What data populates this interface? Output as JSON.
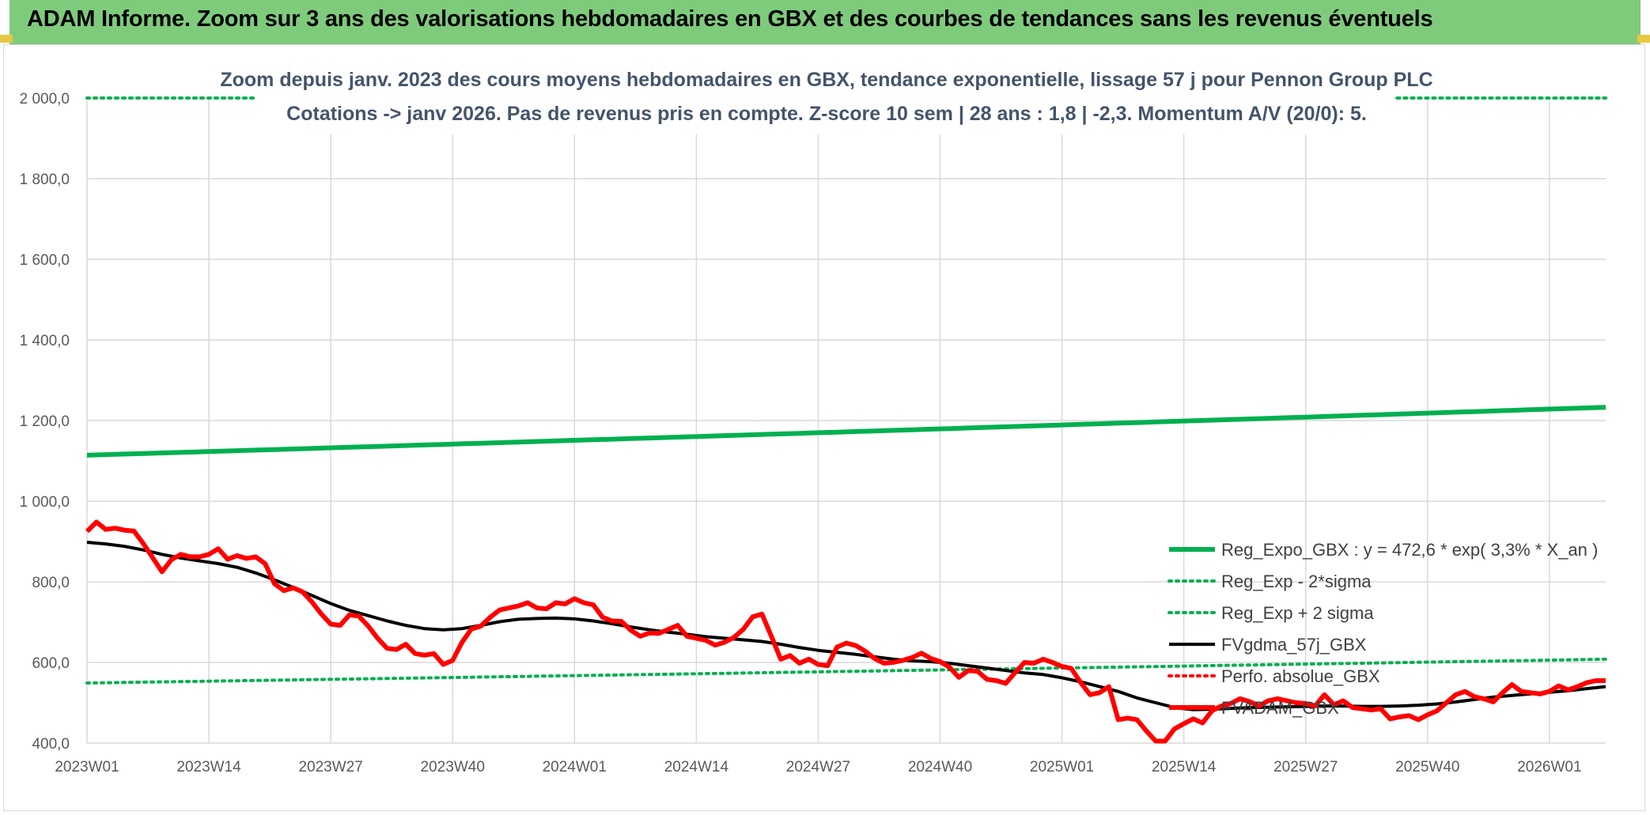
{
  "header": {
    "title": "ADAM Informe. Zoom sur 3 ans des valorisations hebdomadaires en GBX et des courbes de tendances sans les revenus éventuels"
  },
  "chart_data": {
    "type": "line",
    "title": "",
    "subtitle_line1": "Zoom depuis janv. 2023 des cours moyens hebdomadaires en GBX, tendance exponentielle, lissage 57 j pour Pennon Group PLC",
    "subtitle_line2": "Cotations -> janv 2026. Pas de revenus pris en compte. Z-score 10 sem | 28 ans : 1,8 | -2,3. Momentum A/V (20/0): 5.",
    "xlabel": "",
    "ylabel": "",
    "ylim": [
      400,
      2000
    ],
    "y_ticks": [
      "2 000,0",
      "1 800,0",
      "1 600,0",
      "1 400,0",
      "1 200,0",
      "1 000,0",
      "800,0",
      "600,0",
      "400,0"
    ],
    "x_ticks": [
      "2023W01",
      "2023W14",
      "2023W27",
      "2023W40",
      "2024W01",
      "2024W14",
      "2024W27",
      "2024W40",
      "2025W01",
      "2025W14",
      "2025W27",
      "2025W40",
      "2026W01"
    ],
    "x_range_weeks": [
      0,
      162
    ],
    "grid": true,
    "legend_position": "right",
    "series": [
      {
        "name": "Reg_Expo_GBX : y = 472,6 * exp( 3,3% *  X_an )",
        "color": "#00b050",
        "style": "solid-thick",
        "x": [
          0,
          162
        ],
        "y": [
          1114,
          1233
        ],
        "kind": "exponential"
      },
      {
        "name": "Reg_Exp - 2*sigma",
        "color": "#00b050",
        "style": "dotted",
        "x": [
          0,
          162
        ],
        "y": [
          549,
          608
        ],
        "kind": "exponential"
      },
      {
        "name": "Reg_Exp + 2 sigma",
        "color": "#00b050",
        "style": "dotted",
        "x": [
          0,
          18,
          139,
          162
        ],
        "y": [
          2000,
          2000,
          2000,
          2000
        ],
        "segments": [
          [
            0,
            18
          ],
          [
            139,
            162
          ]
        ]
      },
      {
        "name": "FVgdma_57j_GBX",
        "color": "#000000",
        "style": "solid",
        "x": [
          0,
          2,
          4,
          6,
          8,
          10,
          12,
          14,
          16,
          18,
          20,
          22,
          24,
          26,
          28,
          30,
          32,
          34,
          36,
          38,
          40,
          42,
          44,
          46,
          48,
          50,
          52,
          54,
          56,
          58,
          60,
          62,
          64,
          66,
          68,
          70,
          72,
          74,
          76,
          78,
          80,
          82,
          84,
          86,
          88,
          90,
          92,
          94,
          96,
          98,
          100,
          102,
          104,
          106,
          108,
          110,
          112,
          114,
          116,
          118,
          120,
          122,
          124,
          126,
          128,
          130,
          132,
          134,
          136,
          138,
          140,
          142,
          144,
          146,
          148,
          150,
          152,
          154,
          156,
          158,
          160,
          162
        ],
        "y": [
          898,
          894,
          888,
          879,
          868,
          859,
          852,
          845,
          836,
          822,
          805,
          786,
          766,
          746,
          729,
          716,
          703,
          692,
          684,
          681,
          684,
          692,
          701,
          707,
          709,
          710,
          708,
          703,
          696,
          688,
          681,
          675,
          670,
          664,
          660,
          656,
          652,
          645,
          637,
          630,
          625,
          620,
          614,
          608,
          604,
          602,
          598,
          592,
          586,
          580,
          574,
          570,
          562,
          552,
          540,
          528,
          512,
          500,
          488,
          483,
          484,
          486,
          488,
          489,
          490,
          491,
          492,
          492,
          491,
          491,
          492,
          494,
          497,
          502,
          508,
          514,
          518,
          522,
          526,
          530,
          535,
          540
        ]
      },
      {
        "name": "Perfo. absolue_GBX",
        "color": "#ff0000",
        "style": "dotted",
        "x": [],
        "y": []
      },
      {
        "name": "FVADAM_GBX",
        "color": "#ff0000",
        "style": "solid-thick",
        "x": [
          0,
          1,
          2,
          3,
          4,
          5,
          6,
          7,
          8,
          9,
          10,
          11,
          12,
          13,
          14,
          15,
          16,
          17,
          18,
          19,
          20,
          21,
          22,
          23,
          24,
          25,
          26,
          27,
          28,
          29,
          30,
          31,
          32,
          33,
          34,
          35,
          36,
          37,
          38,
          39,
          40,
          41,
          42,
          43,
          44,
          45,
          46,
          47,
          48,
          49,
          50,
          51,
          52,
          53,
          54,
          55,
          56,
          57,
          58,
          59,
          60,
          61,
          62,
          63,
          64,
          65,
          66,
          67,
          68,
          69,
          70,
          71,
          72,
          73,
          74,
          75,
          76,
          77,
          78,
          79,
          80,
          81,
          82,
          83,
          84,
          85,
          86,
          87,
          88,
          89,
          90,
          91,
          92,
          93,
          94,
          95,
          96,
          97,
          98,
          99,
          100,
          101,
          102,
          103,
          104,
          105,
          106,
          107,
          108,
          109,
          110,
          111,
          112,
          113,
          114,
          115,
          116,
          117,
          118,
          119,
          120,
          121,
          122,
          123,
          124,
          125,
          126,
          127,
          128,
          129,
          130,
          131,
          132,
          133,
          134,
          135,
          136,
          137,
          138,
          139,
          140,
          141,
          142,
          143,
          144,
          145,
          146,
          147,
          148,
          149,
          150,
          151,
          152,
          153,
          154,
          155,
          156,
          157,
          158,
          159,
          160,
          161,
          162
        ],
        "y": [
          925,
          948,
          930,
          933,
          928,
          926,
          895,
          860,
          825,
          855,
          868,
          862,
          862,
          868,
          882,
          856,
          865,
          858,
          862,
          845,
          795,
          778,
          785,
          775,
          750,
          720,
          695,
          692,
          718,
          715,
          690,
          660,
          635,
          632,
          645,
          622,
          618,
          622,
          595,
          605,
          650,
          683,
          690,
          712,
          730,
          735,
          740,
          748,
          735,
          733,
          748,
          745,
          758,
          748,
          743,
          712,
          703,
          702,
          680,
          665,
          673,
          672,
          682,
          692,
          665,
          660,
          655,
          643,
          650,
          662,
          682,
          713,
          720,
          665,
          608,
          617,
          598,
          608,
          595,
          592,
          638,
          648,
          642,
          628,
          610,
          598,
          600,
          605,
          612,
          623,
          610,
          602,
          588,
          563,
          580,
          578,
          558,
          555,
          548,
          575,
          600,
          598,
          608,
          600,
          590,
          585,
          550,
          520,
          525,
          540,
          458,
          462,
          458,
          430,
          405,
          405,
          435,
          448,
          460,
          450,
          480,
          492,
          498,
          510,
          503,
          492,
          505,
          510,
          505,
          500,
          498,
          492,
          520,
          495,
          505,
          488,
          485,
          482,
          485,
          460,
          465,
          468,
          458,
          470,
          480,
          500,
          520,
          528,
          515,
          510,
          502,
          525,
          545,
          528,
          525,
          522,
          528,
          542,
          532,
          540,
          550,
          555,
          555
        ]
      }
    ]
  },
  "colors": {
    "banner_bg": "#7fcb7c",
    "grid": "#d9d9d9",
    "subtitle": "#44546a"
  }
}
